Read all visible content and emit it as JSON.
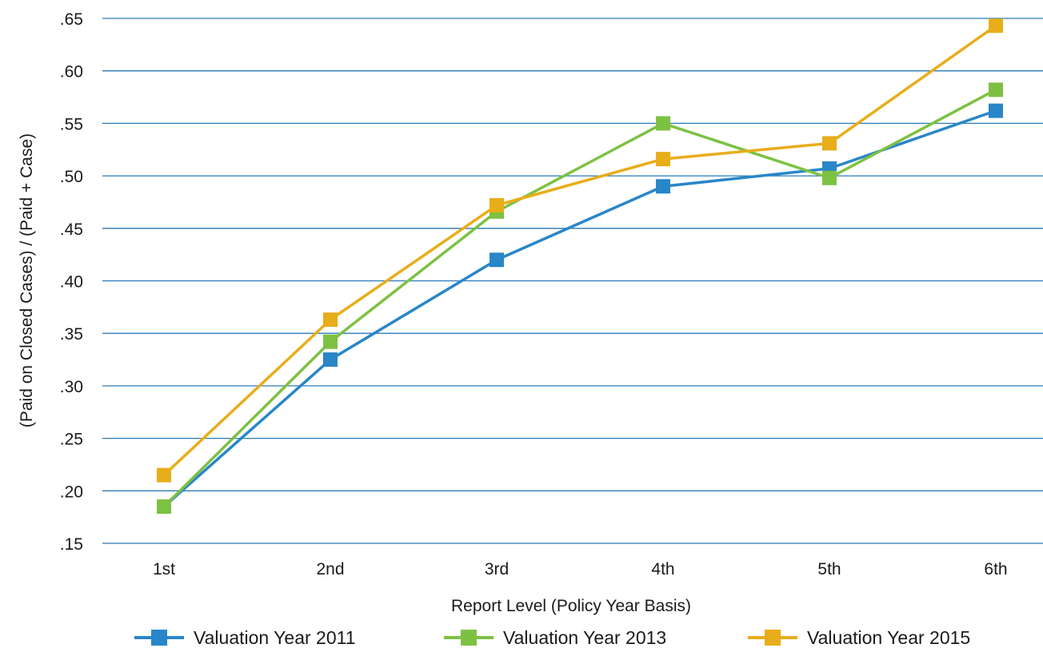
{
  "chart_data": {
    "type": "line",
    "title": "",
    "xlabel": "Report Level (Policy Year Basis)",
    "ylabel": "(Paid on Closed Cases) / (Paid + Case)",
    "categories": [
      "1st",
      "2nd",
      "3rd",
      "4th",
      "5th",
      "6th"
    ],
    "ylim": [
      0.15,
      0.65
    ],
    "yticks": [
      0.15,
      0.2,
      0.25,
      0.3,
      0.35,
      0.4,
      0.45,
      0.5,
      0.55,
      0.6,
      0.65
    ],
    "ytick_labels": [
      ".15",
      ".20",
      ".25",
      ".30",
      ".35",
      ".40",
      ".45",
      ".50",
      ".55",
      ".60",
      ".65"
    ],
    "grid": true,
    "legend_position": "bottom",
    "series": [
      {
        "name": "Valuation Year 2011",
        "color": "#2986c8",
        "values": [
          0.185,
          0.325,
          0.42,
          0.49,
          0.507,
          0.562
        ]
      },
      {
        "name": "Valuation Year 2013",
        "color": "#7dc142",
        "values": [
          0.185,
          0.342,
          0.466,
          0.55,
          0.498,
          0.582
        ]
      },
      {
        "name": "Valuation Year 2015",
        "color": "#e8ad1a",
        "values": [
          0.215,
          0.363,
          0.472,
          0.516,
          0.531,
          0.643
        ]
      }
    ]
  }
}
